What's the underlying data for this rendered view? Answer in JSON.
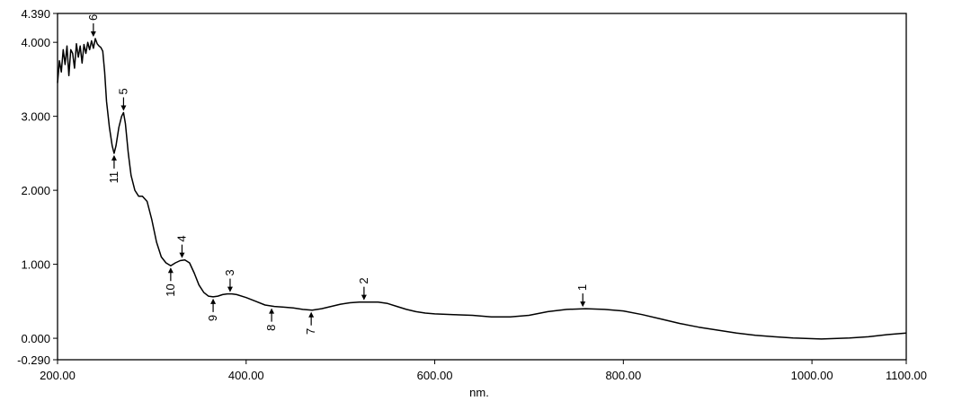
{
  "chart_data": {
    "type": "line",
    "title": "",
    "xlabel": "nm.",
    "ylabel": "",
    "xlim": [
      200,
      1100
    ],
    "ylim": [
      -0.29,
      4.39
    ],
    "grid": false,
    "x_ticks": [
      200,
      400,
      600,
      800,
      1000,
      1100
    ],
    "x_tick_labels": [
      "200.00",
      "400.00",
      "600.00",
      "800.00",
      "1000.00",
      "1100.00"
    ],
    "y_ticks": [
      4.39,
      4.0,
      3.0,
      2.0,
      1.0,
      0.0,
      -0.29
    ],
    "y_tick_labels": [
      "4.390",
      "4.000",
      "3.000",
      "2.000",
      "1.000",
      "0.000",
      "-0.290"
    ],
    "series": [
      {
        "values": [
          [
            200,
            3.45
          ],
          [
            202,
            3.75
          ],
          [
            204,
            3.6
          ],
          [
            206,
            3.9
          ],
          [
            208,
            3.7
          ],
          [
            210,
            3.95
          ],
          [
            212,
            3.55
          ],
          [
            214,
            3.9
          ],
          [
            216,
            3.85
          ],
          [
            218,
            3.65
          ],
          [
            220,
            3.98
          ],
          [
            222,
            3.8
          ],
          [
            224,
            3.95
          ],
          [
            226,
            3.72
          ],
          [
            228,
            3.97
          ],
          [
            230,
            3.85
          ],
          [
            232,
            4.0
          ],
          [
            234,
            3.9
          ],
          [
            236,
            4.02
          ],
          [
            238,
            3.92
          ],
          [
            240,
            4.05
          ],
          [
            242,
            3.98
          ],
          [
            244,
            3.95
          ],
          [
            246,
            3.93
          ],
          [
            248,
            3.88
          ],
          [
            250,
            3.6
          ],
          [
            252,
            3.2
          ],
          [
            255,
            2.85
          ],
          [
            258,
            2.6
          ],
          [
            260,
            2.5
          ],
          [
            262,
            2.6
          ],
          [
            265,
            2.85
          ],
          [
            268,
            3.0
          ],
          [
            270,
            3.05
          ],
          [
            272,
            2.9
          ],
          [
            275,
            2.5
          ],
          [
            278,
            2.2
          ],
          [
            282,
            2.0
          ],
          [
            286,
            1.92
          ],
          [
            290,
            1.92
          ],
          [
            295,
            1.85
          ],
          [
            300,
            1.6
          ],
          [
            305,
            1.3
          ],
          [
            310,
            1.1
          ],
          [
            315,
            1.02
          ],
          [
            320,
            0.98
          ],
          [
            325,
            1.02
          ],
          [
            330,
            1.05
          ],
          [
            335,
            1.06
          ],
          [
            340,
            1.02
          ],
          [
            345,
            0.88
          ],
          [
            350,
            0.72
          ],
          [
            355,
            0.62
          ],
          [
            360,
            0.57
          ],
          [
            365,
            0.56
          ],
          [
            370,
            0.57
          ],
          [
            375,
            0.59
          ],
          [
            380,
            0.6
          ],
          [
            385,
            0.6
          ],
          [
            390,
            0.59
          ],
          [
            400,
            0.55
          ],
          [
            410,
            0.5
          ],
          [
            420,
            0.45
          ],
          [
            430,
            0.43
          ],
          [
            440,
            0.42
          ],
          [
            450,
            0.41
          ],
          [
            460,
            0.39
          ],
          [
            470,
            0.38
          ],
          [
            480,
            0.4
          ],
          [
            490,
            0.43
          ],
          [
            500,
            0.46
          ],
          [
            510,
            0.48
          ],
          [
            520,
            0.49
          ],
          [
            530,
            0.49
          ],
          [
            540,
            0.49
          ],
          [
            550,
            0.47
          ],
          [
            560,
            0.43
          ],
          [
            570,
            0.39
          ],
          [
            580,
            0.36
          ],
          [
            590,
            0.34
          ],
          [
            600,
            0.33
          ],
          [
            620,
            0.32
          ],
          [
            640,
            0.31
          ],
          [
            660,
            0.29
          ],
          [
            680,
            0.29
          ],
          [
            700,
            0.31
          ],
          [
            720,
            0.36
          ],
          [
            740,
            0.39
          ],
          [
            760,
            0.4
          ],
          [
            780,
            0.39
          ],
          [
            800,
            0.37
          ],
          [
            820,
            0.32
          ],
          [
            840,
            0.26
          ],
          [
            860,
            0.2
          ],
          [
            880,
            0.15
          ],
          [
            900,
            0.11
          ],
          [
            920,
            0.07
          ],
          [
            940,
            0.04
          ],
          [
            960,
            0.02
          ],
          [
            980,
            0.005
          ],
          [
            1000,
            -0.005
          ],
          [
            1010,
            -0.01
          ],
          [
            1020,
            -0.005
          ],
          [
            1040,
            0.005
          ],
          [
            1060,
            0.02
          ],
          [
            1080,
            0.05
          ],
          [
            1100,
            0.07
          ]
        ]
      }
    ],
    "peak_markers": [
      {
        "label": "1",
        "x": 757,
        "y": 0.4,
        "direction": "down"
      },
      {
        "label": "2",
        "x": 525,
        "y": 0.49,
        "direction": "down"
      },
      {
        "label": "3",
        "x": 383,
        "y": 0.6,
        "direction": "down"
      },
      {
        "label": "4",
        "x": 332,
        "y": 1.06,
        "direction": "down"
      },
      {
        "label": "5",
        "x": 270,
        "y": 3.05,
        "direction": "down"
      },
      {
        "label": "6",
        "x": 238,
        "y": 4.05,
        "direction": "down"
      },
      {
        "label": "7",
        "x": 469,
        "y": 0.38,
        "direction": "up"
      },
      {
        "label": "8",
        "x": 427,
        "y": 0.43,
        "direction": "up"
      },
      {
        "label": "9",
        "x": 365,
        "y": 0.56,
        "direction": "up"
      },
      {
        "label": "10",
        "x": 320,
        "y": 0.98,
        "direction": "up"
      },
      {
        "label": "11",
        "x": 260,
        "y": 2.5,
        "direction": "up"
      }
    ]
  }
}
